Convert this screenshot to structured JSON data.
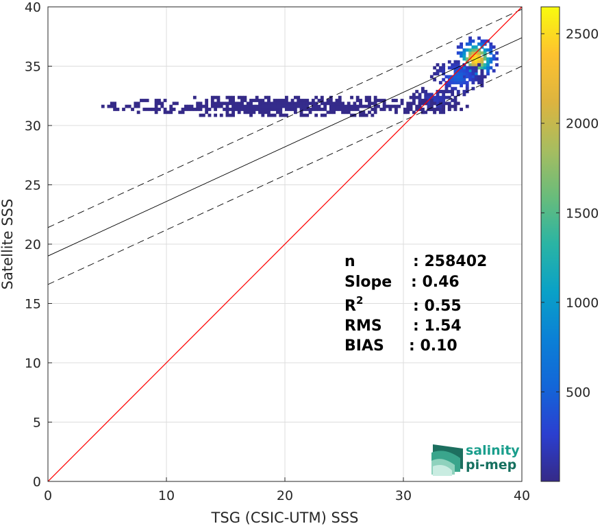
{
  "chart_data": {
    "type": "heatmap",
    "xlabel": "TSG (CSIC-UTM) SSS",
    "ylabel": "Satellite SSS",
    "xlim": [
      0,
      40
    ],
    "ylim": [
      0,
      40
    ],
    "xticks": [
      "0",
      "10",
      "20",
      "30",
      "40"
    ],
    "yticks": [
      "0",
      "5",
      "10",
      "15",
      "20",
      "25",
      "30",
      "35",
      "40"
    ],
    "grid": true,
    "colorbar": {
      "range": [
        0,
        2650
      ],
      "ticks": [
        "500",
        "1000",
        "1500",
        "2000",
        "2500"
      ],
      "colormap": "parula"
    },
    "lines": {
      "identity": {
        "slope": 1,
        "intercept": 0,
        "color": "#ff0000"
      },
      "fit": {
        "slope": 0.46,
        "intercept": 19.0,
        "color": "#000000"
      },
      "fit_upper": {
        "slope": 0.46,
        "intercept": 21.4,
        "style": "dashed"
      },
      "fit_lower": {
        "slope": 0.46,
        "intercept": 16.6,
        "style": "dashed"
      }
    },
    "density_clusters": [
      {
        "x": 36.0,
        "y": 35.5,
        "sx": 1.1,
        "sy": 1.1,
        "count": 2600
      },
      {
        "x": 34.5,
        "y": 34.0,
        "sx": 1.3,
        "sy": 1.0,
        "count": 500
      },
      {
        "x": 32.5,
        "y": 32.0,
        "sx": 1.2,
        "sy": 0.7,
        "count": 200
      },
      {
        "x": 20.0,
        "y": 31.5,
        "sx": 9.0,
        "sy": 0.5,
        "count": 20
      }
    ],
    "stats": [
      {
        "label": "n",
        "value": ": 258402"
      },
      {
        "label": "Slope",
        "value": ": 0.46"
      },
      {
        "label": "R",
        "sup": "2",
        "value": ": 0.55"
      },
      {
        "label": "RMS",
        "value": ": 1.54"
      },
      {
        "label": "BIAS",
        "value": ": 0.10"
      }
    ]
  },
  "logo": {
    "line1": "salinity",
    "line2": "pi-mep",
    "color": "#1a9e8c"
  }
}
